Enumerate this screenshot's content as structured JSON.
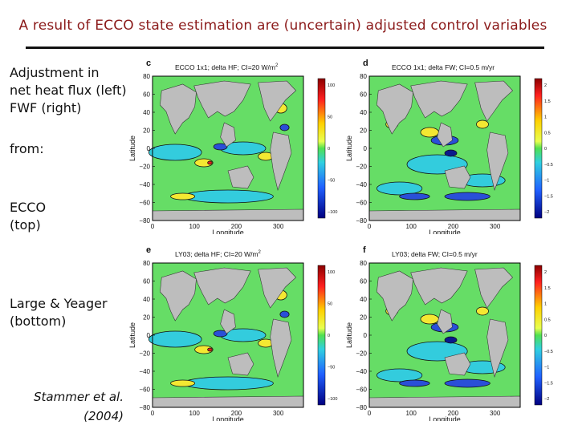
{
  "slide": {
    "title": "A result of ECCO state estimation are (uncertain) adjusted control variables",
    "left_text": {
      "line1": "Adjustment in",
      "line2": "net heat flux (left)",
      "line3": "FWF (right)",
      "from": "from:",
      "ecco": "ECCO",
      "ecco_pos": "(top)",
      "large": "Large & Yeager",
      "large_pos": "(bottom)"
    },
    "citation": {
      "line1": "Stammer et al.",
      "line2": "(2004)"
    }
  },
  "panels": [
    {
      "letter": "c",
      "title": "ECCO 1x1; delta HF; CI=20 W/m",
      "title_sup": "2",
      "xlabel": "Longitude",
      "ylabel": "Latitude",
      "yticks": [
        "80",
        "60",
        "40",
        "20",
        "0",
        "−20",
        "−40",
        "−60",
        "−80"
      ],
      "xticks": [
        "0",
        "100",
        "200",
        "300"
      ],
      "cbar": [
        "100",
        "50",
        "0",
        "−50",
        "−100"
      ],
      "palette": "hf"
    },
    {
      "letter": "d",
      "title": "ECCO 1x1; delta FW; CI=0.5 m/yr",
      "title_sup": "",
      "xlabel": "Longitude",
      "ylabel": "Latitude",
      "yticks": [
        "80",
        "60",
        "40",
        "20",
        "0",
        "−20",
        "−40",
        "−60",
        "−80"
      ],
      "xticks": [
        "0",
        "100",
        "200",
        "300"
      ],
      "cbar": [
        "2",
        "1.5",
        "1",
        "0.5",
        "0",
        "−0.5",
        "−1",
        "−1.5",
        "−2"
      ],
      "palette": "fw"
    },
    {
      "letter": "e",
      "title": "LY03; delta HF; CI=20 W/m",
      "title_sup": "2",
      "xlabel": "Longitude",
      "ylabel": "Latitude",
      "yticks": [
        "80",
        "60",
        "40",
        "20",
        "0",
        "−20",
        "−40",
        "−60",
        "−80"
      ],
      "xticks": [
        "0",
        "100",
        "200",
        "300"
      ],
      "cbar": [
        "100",
        "50",
        "0",
        "−50",
        "−100"
      ],
      "palette": "hf"
    },
    {
      "letter": "f",
      "title": "LY03; delta FW; CI=0.5 m/yr",
      "title_sup": "",
      "xlabel": "Longitude",
      "ylabel": "Latitude",
      "yticks": [
        "80",
        "60",
        "40",
        "20",
        "0",
        "−20",
        "−40",
        "−60",
        "−80"
      ],
      "xticks": [
        "0",
        "100",
        "200",
        "300"
      ],
      "cbar": [
        "2",
        "1.5",
        "1",
        "0.5",
        "0",
        "−0.5",
        "−1",
        "−1.5",
        "−2"
      ],
      "palette": "fw"
    }
  ],
  "colors": {
    "title": "#8b1a1a",
    "land": "#bdbdbd",
    "ocean": "#66dd66",
    "cyan": "#33ccdd",
    "yellow": "#f4e832",
    "blue": "#2a4fd8",
    "red": "#e32020",
    "navy": "#0b1a8c"
  }
}
